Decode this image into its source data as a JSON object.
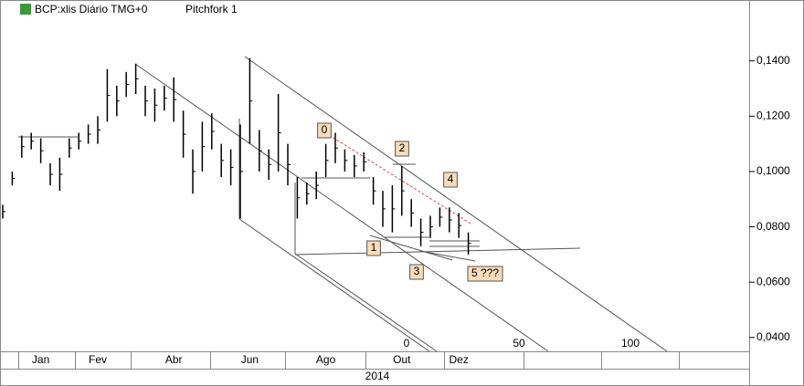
{
  "chart_data": {
    "type": "range-bar",
    "header": [
      "BCP:xlis Diário TMG+0",
      "Pitchfork 1"
    ],
    "categories": [
      null,
      null,
      null,
      null,
      "Jan",
      null,
      null,
      null,
      null,
      null,
      "Fev",
      null,
      null,
      null,
      null,
      null,
      null,
      null,
      "Abr",
      null,
      null,
      null,
      null,
      null,
      null,
      null,
      "Jun",
      null,
      null,
      null,
      null,
      null,
      null,
      null,
      "Ago",
      null,
      null,
      null,
      null,
      null,
      null,
      null,
      "Out",
      null,
      null,
      null,
      null,
      null,
      "Dez",
      null
    ],
    "year": "2014",
    "high": [
      0.088,
      0.1,
      0.113,
      0.114,
      0.112,
      0.103,
      0.105,
      0.112,
      0.114,
      0.117,
      0.12,
      0.137,
      0.131,
      0.136,
      0.139,
      0.131,
      0.13,
      0.131,
      0.134,
      0.122,
      0.108,
      0.118,
      0.121,
      0.11,
      0.108,
      0.117,
      0.141,
      0.115,
      0.108,
      0.128,
      0.11,
      0.098,
      0.096,
      0.1,
      0.11,
      0.114,
      0.108,
      0.106,
      0.107,
      0.098,
      0.093,
      0.095,
      0.102,
      0.09,
      0.083,
      0.084,
      0.087,
      0.087,
      0.085,
      0.078
    ],
    "low": [
      0.083,
      0.095,
      0.105,
      0.108,
      0.103,
      0.095,
      0.093,
      0.105,
      0.108,
      0.11,
      0.11,
      0.118,
      0.12,
      0.127,
      0.128,
      0.12,
      0.118,
      0.122,
      0.118,
      0.105,
      0.092,
      0.1,
      0.108,
      0.098,
      0.095,
      0.083,
      0.11,
      0.1,
      0.097,
      0.1,
      0.095,
      0.083,
      0.088,
      0.09,
      0.098,
      0.103,
      0.1,
      0.098,
      0.1,
      0.088,
      0.08,
      0.078,
      0.084,
      0.08,
      0.073,
      0.076,
      0.08,
      0.078,
      0.076,
      0.07
    ],
    "color": "#000000",
    "ylim": [
      0.035,
      0.162
    ],
    "yticks": [
      {
        "value": 0.04,
        "label": "0,0400"
      },
      {
        "value": 0.06,
        "label": "0,0600"
      },
      {
        "value": 0.08,
        "label": "0,0800"
      },
      {
        "value": 0.1,
        "label": "0,1000"
      },
      {
        "value": 0.12,
        "label": "0,1200"
      },
      {
        "value": 0.14,
        "label": "0,1400"
      }
    ],
    "annotations": [
      "0",
      "1",
      "2",
      "3",
      "4",
      "5 ???"
    ],
    "fork_scale": [
      "0",
      "50",
      "100"
    ]
  }
}
